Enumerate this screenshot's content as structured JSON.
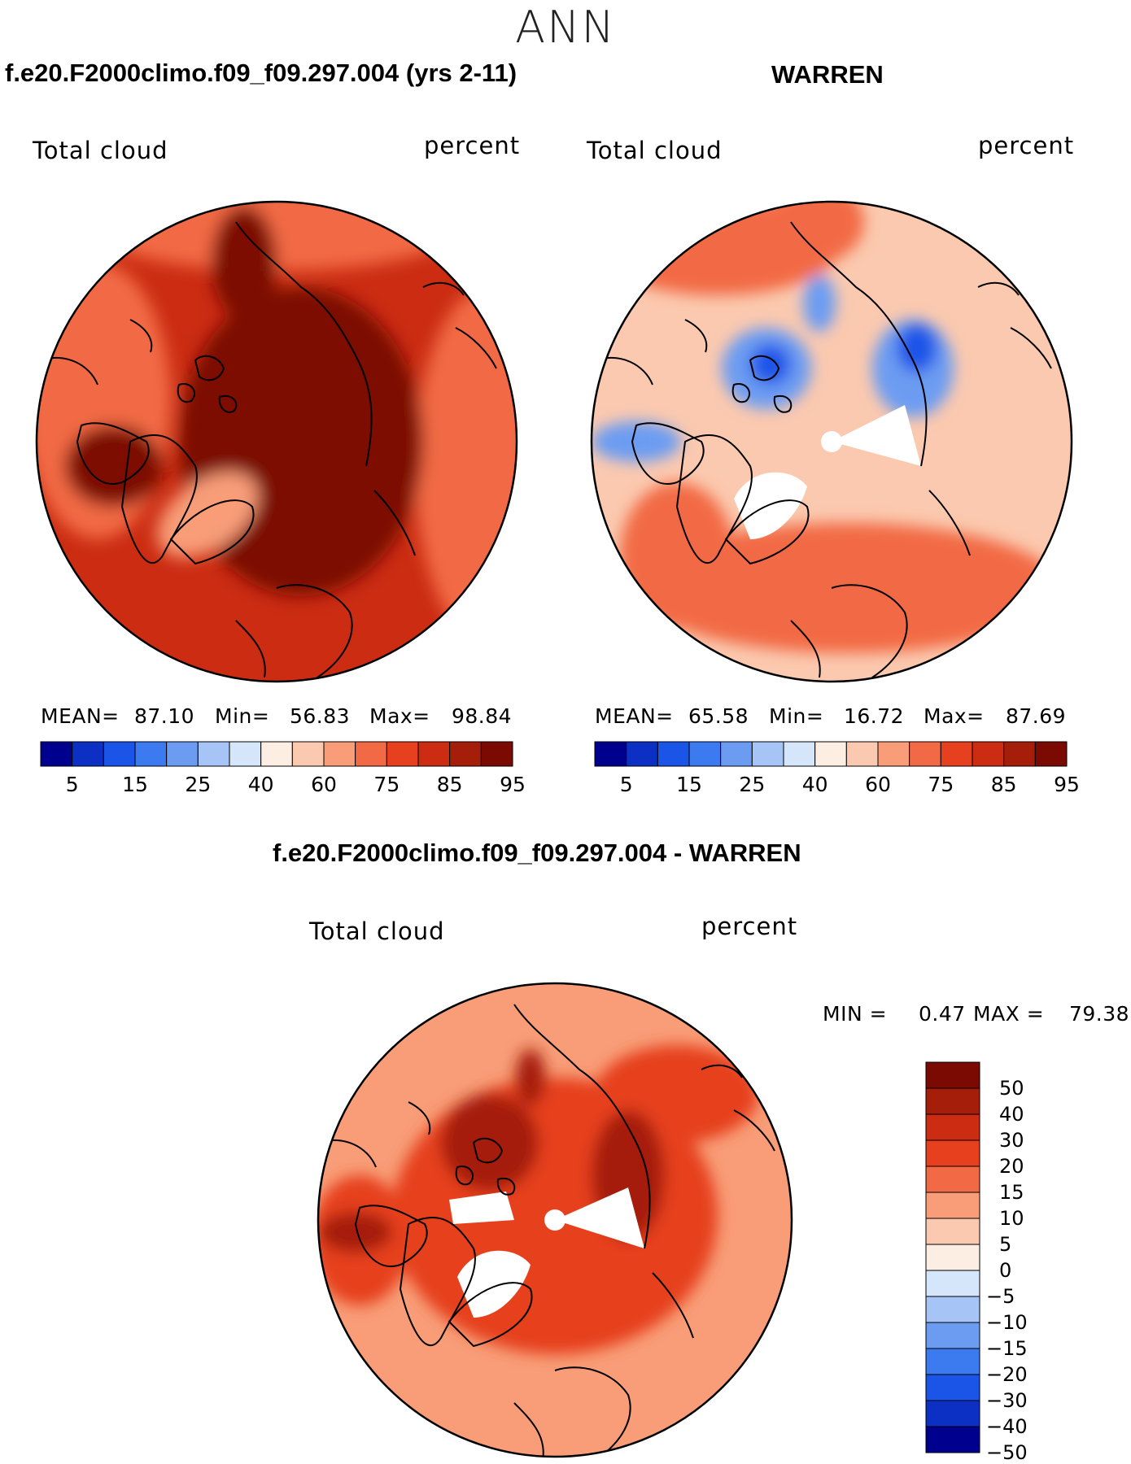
{
  "page": {
    "title": "ANN"
  },
  "panels": [
    {
      "case": "f.e20.F2000climo.f09_f09.297.004 (yrs 2-11)",
      "variable": "Total cloud",
      "units": "percent",
      "stats": {
        "mean_label": "MEAN=",
        "mean": "87.10",
        "min_label": "Min=",
        "min": "56.83",
        "max_label": "Max=",
        "max": "98.84"
      }
    },
    {
      "case": "WARREN",
      "variable": "Total cloud",
      "units": "percent",
      "stats": {
        "mean_label": "MEAN=",
        "mean": "65.58",
        "min_label": "Min=",
        "min": "16.72",
        "max_label": "Max=",
        "max": "87.69"
      }
    }
  ],
  "diff_panel": {
    "case": "f.e20.F2000climo.f09_f09.297.004 - WARREN",
    "variable": "Total cloud",
    "units": "percent",
    "min_label": "MIN =",
    "min": "0.47",
    "max_label": "MAX =",
    "max": "79.38"
  },
  "colorbar_abs": {
    "colors": [
      "#00008f",
      "#0c2fc4",
      "#1a55e8",
      "#3c7af0",
      "#6c9cf2",
      "#a6c4f5",
      "#d6e6fa",
      "#fdeee3",
      "#fbc9af",
      "#f89d78",
      "#f26a45",
      "#e6401f",
      "#cb2c12",
      "#a51e0a",
      "#7b0a02"
    ],
    "ticks": [
      "5",
      "15",
      "25",
      "40",
      "60",
      "75",
      "85",
      "95"
    ]
  },
  "colorbar_diff": {
    "colors_top_to_bottom": [
      "#7b0a02",
      "#a51e0a",
      "#cb2c12",
      "#e6401f",
      "#f26a45",
      "#f89d78",
      "#fbc9af",
      "#fdeee3",
      "#d6e6fa",
      "#a6c4f5",
      "#6c9cf2",
      "#3c7af0",
      "#1a55e8",
      "#0c2fc4",
      "#00008f"
    ],
    "ticks": [
      "50",
      "40",
      "30",
      "20",
      "15",
      "10",
      "5",
      "0",
      "−5",
      "−10",
      "−15",
      "−20",
      "−30",
      "−40",
      "−50"
    ]
  },
  "map_colors": {
    "left_base": "#cb2c12",
    "left_core": "#7b0a02",
    "left_rim": "#f26a45",
    "left_greenland": "#f89d78",
    "right_base": "#fbc9af",
    "right_warm": "#f26a45",
    "right_cold": "#6c9cf2",
    "right_cold_core": "#1a55e8",
    "diff_base": "#f89d78",
    "diff_mid": "#e6401f",
    "diff_core": "#a51e0a",
    "coast": "#000000",
    "missing": "#ffffff"
  }
}
